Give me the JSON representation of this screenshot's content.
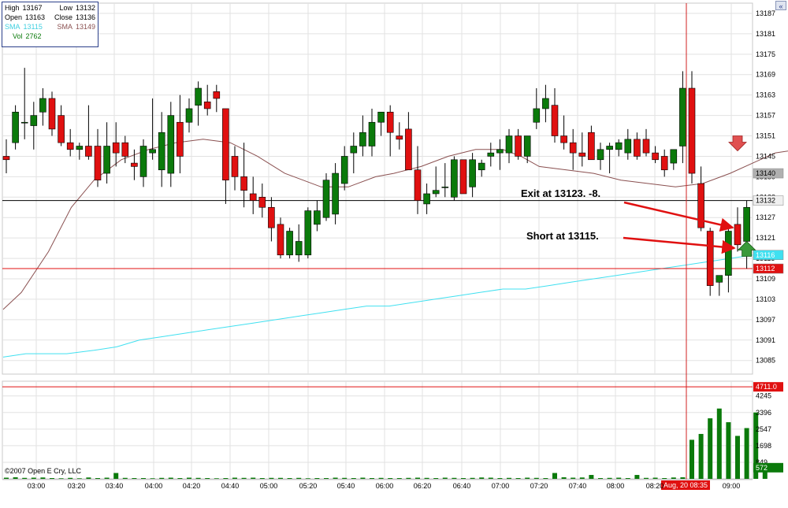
{
  "info": {
    "high_label": "High",
    "high_value": "13167",
    "low_label": "Low",
    "low_value": "13132",
    "open_label": "Open",
    "open_value": "13163",
    "close_label": "Close",
    "close_value": "13136",
    "sma1_label": "SMA",
    "sma1_value": "13115",
    "sma2_label": "SMA",
    "sma2_value": "13149",
    "vol_label": "Vol",
    "vol_value": "2762"
  },
  "copyright": "©2007 Open E Cry, LLC",
  "scroll_glyph": "«",
  "annotations": {
    "exit": "Exit at 13123.  -8.",
    "short": "Short at 13115."
  },
  "colors": {
    "up": "#0b7a0b",
    "down": "#e01010",
    "sma_slow": "#40e0f0",
    "sma_fast": "#8a5050",
    "grid": "#e2e2e2",
    "crosshair": "#d02020",
    "hline_black": "#000000"
  },
  "chart_data": {
    "type": "candlestick",
    "time_axis_labels": [
      "03:00",
      "03:20",
      "03:40",
      "04:00",
      "04:20",
      "04:40",
      "05:00",
      "05:20",
      "05:40",
      "06:00",
      "06:20",
      "06:40",
      "07:00",
      "07:20",
      "07:40",
      "08:00",
      "08:20",
      "09:00"
    ],
    "price_axis_labels": [
      13187,
      13181,
      13175,
      13169,
      13163,
      13157,
      13151,
      13145,
      13139,
      13133,
      13127,
      13121,
      13115,
      13109,
      13103,
      13097,
      13091,
      13085
    ],
    "price_range": [
      13081,
      13190
    ],
    "volume_axis_labels": [
      4245,
      3396,
      2547,
      1698,
      849
    ],
    "volume_range": [
      0,
      5000
    ],
    "price_tags": [
      {
        "label": "13140",
        "value": 13140,
        "color": "#b0b0b0",
        "text_color": "#000000"
      },
      {
        "label": "13132",
        "value": 13132,
        "color": "#f0f0f0",
        "text_color": "#000000"
      },
      {
        "label": "13116",
        "value": 13116,
        "color": "#40e0f0",
        "text_color": "#ffffff"
      },
      {
        "label": "13112",
        "value": 13112,
        "color": "#e01010",
        "text_color": "#ffffff"
      }
    ],
    "volume_tags": [
      {
        "label": "4711.0",
        "value": 4711,
        "color": "#e01010",
        "text_color": "#ffffff"
      },
      {
        "label": "572",
        "value": 572,
        "color": "#0b7a0b",
        "text_color": "#ffffff"
      }
    ],
    "crosshair_time_label": "Aug, 20 08:35",
    "horizontal_lines": [
      {
        "value": 13132,
        "color": "#000000"
      },
      {
        "value": 13112,
        "color": "#e01010"
      }
    ],
    "candles": [
      {
        "o": 13145,
        "h": 13150,
        "l": 13140,
        "c": 13144
      },
      {
        "o": 13149,
        "h": 13160,
        "l": 13147,
        "c": 13158
      },
      {
        "o": 13155,
        "h": 13171,
        "l": 13150,
        "c": 13155
      },
      {
        "o": 13154,
        "h": 13161,
        "l": 13147,
        "c": 13157
      },
      {
        "o": 13158,
        "h": 13165,
        "l": 13154,
        "c": 13162
      },
      {
        "o": 13162,
        "h": 13164,
        "l": 13151,
        "c": 13153
      },
      {
        "o": 13157,
        "h": 13160,
        "l": 13148,
        "c": 13149
      },
      {
        "o": 13149,
        "h": 13153,
        "l": 13145,
        "c": 13147
      },
      {
        "o": 13147,
        "h": 13149,
        "l": 13144,
        "c": 13148
      },
      {
        "o": 13148,
        "h": 13160,
        "l": 13144,
        "c": 13145
      },
      {
        "o": 13148,
        "h": 13153,
        "l": 13136,
        "c": 13138
      },
      {
        "o": 13140,
        "h": 13155,
        "l": 13137,
        "c": 13148
      },
      {
        "o": 13149,
        "h": 13155,
        "l": 13142,
        "c": 13146
      },
      {
        "o": 13149,
        "h": 13151,
        "l": 13143,
        "c": 13145
      },
      {
        "o": 13143,
        "h": 13147,
        "l": 13138,
        "c": 13142
      },
      {
        "o": 13139,
        "h": 13150,
        "l": 13136,
        "c": 13148
      },
      {
        "o": 13146,
        "h": 13162,
        "l": 13144,
        "c": 13147
      },
      {
        "o": 13141,
        "h": 13158,
        "l": 13136,
        "c": 13152
      },
      {
        "o": 13140,
        "h": 13161,
        "l": 13136,
        "c": 13157
      },
      {
        "o": 13155,
        "h": 13163,
        "l": 13140,
        "c": 13145
      },
      {
        "o": 13155,
        "h": 13162,
        "l": 13152,
        "c": 13159
      },
      {
        "o": 13160,
        "h": 13167,
        "l": 13154,
        "c": 13165
      },
      {
        "o": 13161,
        "h": 13166,
        "l": 13157,
        "c": 13159
      },
      {
        "o": 13164,
        "h": 13166,
        "l": 13158,
        "c": 13162
      },
      {
        "o": 13159,
        "h": 13159,
        "l": 13131,
        "c": 13138
      },
      {
        "o": 13145,
        "h": 13148,
        "l": 13135,
        "c": 13139
      },
      {
        "o": 13139,
        "h": 13149,
        "l": 13130,
        "c": 13135
      },
      {
        "o": 13134,
        "h": 13139,
        "l": 13128,
        "c": 13132
      },
      {
        "o": 13133,
        "h": 13137,
        "l": 13127,
        "c": 13130
      },
      {
        "o": 13130,
        "h": 13133,
        "l": 13120,
        "c": 13124
      },
      {
        "o": 13125,
        "h": 13127,
        "l": 13115,
        "c": 13116
      },
      {
        "o": 13116,
        "h": 13124,
        "l": 13115,
        "c": 13123
      },
      {
        "o": 13116,
        "h": 13125,
        "l": 13114,
        "c": 13120
      },
      {
        "o": 13116,
        "h": 13130,
        "l": 13115,
        "c": 13129
      },
      {
        "o": 13125,
        "h": 13132,
        "l": 13123,
        "c": 13129
      },
      {
        "o": 13127,
        "h": 13140,
        "l": 13126,
        "c": 13138
      },
      {
        "o": 13128,
        "h": 13143,
        "l": 13125,
        "c": 13140
      },
      {
        "o": 13137,
        "h": 13148,
        "l": 13135,
        "c": 13145
      },
      {
        "o": 13146,
        "h": 13152,
        "l": 13140,
        "c": 13148
      },
      {
        "o": 13148,
        "h": 13157,
        "l": 13145,
        "c": 13152
      },
      {
        "o": 13148,
        "h": 13159,
        "l": 13145,
        "c": 13155
      },
      {
        "o": 13155,
        "h": 13158,
        "l": 13151,
        "c": 13158
      },
      {
        "o": 13158,
        "h": 13160,
        "l": 13145,
        "c": 13152
      },
      {
        "o": 13151,
        "h": 13155,
        "l": 13147,
        "c": 13150
      },
      {
        "o": 13153,
        "h": 13158,
        "l": 13141,
        "c": 13141
      },
      {
        "o": 13141,
        "h": 13148,
        "l": 13128,
        "c": 13132
      },
      {
        "o": 13131,
        "h": 13137,
        "l": 13128,
        "c": 13134
      },
      {
        "o": 13134,
        "h": 13142,
        "l": 13133,
        "c": 13135
      },
      {
        "o": 13136,
        "h": 13143,
        "l": 13133,
        "c": 13136
      },
      {
        "o": 13133,
        "h": 13145,
        "l": 13132,
        "c": 13144
      },
      {
        "o": 13144,
        "h": 13144,
        "l": 13134,
        "c": 13134
      },
      {
        "o": 13136,
        "h": 13146,
        "l": 13133,
        "c": 13144
      },
      {
        "o": 13141,
        "h": 13144,
        "l": 13139,
        "c": 13143
      },
      {
        "o": 13145,
        "h": 13149,
        "l": 13142,
        "c": 13146
      },
      {
        "o": 13146,
        "h": 13150,
        "l": 13141,
        "c": 13147
      },
      {
        "o": 13146,
        "h": 13153,
        "l": 13143,
        "c": 13151
      },
      {
        "o": 13151,
        "h": 13153,
        "l": 13144,
        "c": 13145
      },
      {
        "o": 13145,
        "h": 13151,
        "l": 13143,
        "c": 13151
      },
      {
        "o": 13155,
        "h": 13165,
        "l": 13153,
        "c": 13159
      },
      {
        "o": 13159,
        "h": 13166,
        "l": 13155,
        "c": 13162
      },
      {
        "o": 13160,
        "h": 13165,
        "l": 13149,
        "c": 13151
      },
      {
        "o": 13151,
        "h": 13157,
        "l": 13147,
        "c": 13149
      },
      {
        "o": 13149,
        "h": 13153,
        "l": 13141,
        "c": 13146
      },
      {
        "o": 13146,
        "h": 13152,
        "l": 13142,
        "c": 13145
      },
      {
        "o": 13152,
        "h": 13154,
        "l": 13144,
        "c": 13144
      },
      {
        "o": 13144,
        "h": 13149,
        "l": 13141,
        "c": 13147
      },
      {
        "o": 13147,
        "h": 13149,
        "l": 13140,
        "c": 13148
      },
      {
        "o": 13147,
        "h": 13150,
        "l": 13145,
        "c": 13149
      },
      {
        "o": 13146,
        "h": 13153,
        "l": 13144,
        "c": 13150
      },
      {
        "o": 13150,
        "h": 13152,
        "l": 13144,
        "c": 13145
      },
      {
        "o": 13150,
        "h": 13153,
        "l": 13145,
        "c": 13146
      },
      {
        "o": 13146,
        "h": 13148,
        "l": 13143,
        "c": 13144
      },
      {
        "o": 13145,
        "h": 13147,
        "l": 13139,
        "c": 13141
      },
      {
        "o": 13143,
        "h": 13147,
        "l": 13141,
        "c": 13147
      },
      {
        "o": 13148,
        "h": 13170,
        "l": 13143,
        "c": 13165
      },
      {
        "o": 13165,
        "h": 13170,
        "l": 13137,
        "c": 13140
      },
      {
        "o": 13137,
        "h": 13142,
        "l": 13123,
        "c": 13124
      },
      {
        "o": 13123,
        "h": 13124,
        "l": 13104,
        "c": 13107
      },
      {
        "o": 13108,
        "h": 13110,
        "l": 13104,
        "c": 13110
      },
      {
        "o": 13110,
        "h": 13125,
        "l": 13105,
        "c": 13123
      },
      {
        "o": 13125,
        "h": 13130,
        "l": 13117,
        "c": 13119
      },
      {
        "o": 13120,
        "h": 13132,
        "l": 13112,
        "c": 13130
      }
    ],
    "volumes": [
      60,
      80,
      50,
      60,
      70,
      40,
      30,
      50,
      30,
      70,
      40,
      60,
      300,
      50,
      40,
      40,
      30,
      50,
      60,
      40,
      60,
      50,
      40,
      30,
      40,
      60,
      50,
      60,
      40,
      50,
      50,
      40,
      50,
      30,
      40,
      40,
      60,
      50,
      40,
      60,
      40,
      50,
      40,
      40,
      50,
      60,
      50,
      40,
      60,
      50,
      40,
      50,
      70,
      60,
      40,
      50,
      40,
      60,
      50,
      40,
      300,
      80,
      60,
      70,
      200,
      40,
      50,
      60,
      40,
      200,
      50,
      60,
      40,
      70,
      80,
      2000,
      2300,
      3100,
      3600,
      2900,
      2200,
      2600,
      3400,
      600
    ],
    "sma_fast": [
      [
        0,
        13100
      ],
      [
        4,
        13105
      ],
      [
        10,
        13117
      ],
      [
        15,
        13130
      ],
      [
        20,
        13138
      ],
      [
        26,
        13144
      ],
      [
        32,
        13147
      ],
      [
        38,
        13149
      ],
      [
        44,
        13150
      ],
      [
        50,
        13149
      ],
      [
        56,
        13145
      ],
      [
        62,
        13140
      ],
      [
        66,
        13138
      ],
      [
        70,
        13136
      ],
      [
        76,
        13136
      ],
      [
        82,
        13139
      ],
      [
        86,
        13140
      ],
      [
        92,
        13142
      ],
      [
        98,
        13145
      ],
      [
        104,
        13147
      ],
      [
        110,
        13147
      ],
      [
        114,
        13145
      ],
      [
        118,
        13142
      ],
      [
        124,
        13141
      ],
      [
        130,
        13140
      ],
      [
        136,
        13138
      ],
      [
        142,
        13137
      ],
      [
        148,
        13136
      ],
      [
        154,
        13137
      ],
      [
        160,
        13140
      ],
      [
        165,
        13143
      ],
      [
        170,
        13146
      ],
      [
        175,
        13147
      ],
      [
        181,
        13147
      ],
      [
        187,
        13146
      ],
      [
        194,
        13145
      ],
      [
        202,
        13145
      ],
      [
        210,
        13146
      ],
      [
        218,
        13148
      ],
      [
        226,
        13149
      ],
      [
        234,
        13150
      ],
      [
        240,
        13151
      ],
      [
        246,
        13152
      ],
      [
        252,
        13152
      ],
      [
        258,
        13151
      ],
      [
        264,
        13150
      ],
      [
        270,
        13149
      ],
      [
        276,
        13147
      ],
      [
        280,
        13145
      ],
      [
        284,
        13142
      ],
      [
        288,
        13140
      ],
      [
        292,
        13140
      ],
      [
        298,
        13141
      ],
      [
        302,
        13143
      ],
      [
        306,
        13145
      ],
      [
        312,
        13146
      ],
      [
        318,
        13146
      ],
      [
        324,
        13146
      ],
      [
        330,
        13145
      ],
      [
        334,
        13143
      ],
      [
        338,
        13141
      ],
      [
        340,
        13141
      ],
      [
        344,
        13141
      ],
      [
        350,
        13140
      ],
      [
        356,
        13138
      ]
    ],
    "sma_slow": [
      [
        0,
        13086
      ],
      [
        5,
        13087
      ],
      [
        10,
        13087
      ],
      [
        14,
        13087
      ],
      [
        20,
        13088
      ],
      [
        25,
        13089
      ],
      [
        30,
        13091
      ],
      [
        35,
        13092
      ],
      [
        40,
        13093
      ],
      [
        45,
        13094
      ],
      [
        50,
        13095
      ],
      [
        55,
        13096
      ],
      [
        60,
        13097
      ],
      [
        65,
        13098
      ],
      [
        70,
        13099
      ],
      [
        75,
        13100
      ],
      [
        80,
        13101
      ],
      [
        85,
        13101
      ],
      [
        90,
        13102
      ],
      [
        95,
        13103
      ],
      [
        100,
        13104
      ],
      [
        105,
        13105
      ],
      [
        110,
        13106
      ],
      [
        115,
        13106
      ],
      [
        120,
        13107
      ],
      [
        125,
        13108
      ],
      [
        130,
        13109
      ],
      [
        135,
        13110
      ],
      [
        140,
        13111
      ],
      [
        145,
        13112
      ],
      [
        150,
        13113
      ],
      [
        155,
        13114
      ],
      [
        160,
        13115
      ],
      [
        165,
        13116
      ]
    ]
  }
}
